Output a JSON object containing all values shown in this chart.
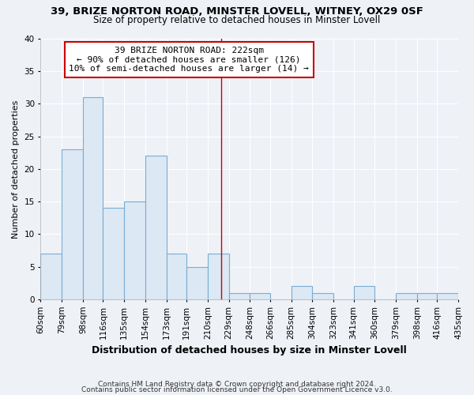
{
  "title": "39, BRIZE NORTON ROAD, MINSTER LOVELL, WITNEY, OX29 0SF",
  "subtitle": "Size of property relative to detached houses in Minster Lovell",
  "xlabel": "Distribution of detached houses by size in Minster Lovell",
  "ylabel": "Number of detached properties",
  "footer_line1": "Contains HM Land Registry data © Crown copyright and database right 2024.",
  "footer_line2": "Contains public sector information licensed under the Open Government Licence v3.0.",
  "bin_edges": [
    60,
    79,
    98,
    116,
    135,
    154,
    173,
    191,
    210,
    229,
    248,
    266,
    285,
    304,
    323,
    341,
    360,
    379,
    398,
    416,
    435
  ],
  "bin_labels": [
    "60sqm",
    "79sqm",
    "98sqm",
    "116sqm",
    "135sqm",
    "154sqm",
    "173sqm",
    "191sqm",
    "210sqm",
    "229sqm",
    "248sqm",
    "266sqm",
    "285sqm",
    "304sqm",
    "323sqm",
    "341sqm",
    "360sqm",
    "379sqm",
    "398sqm",
    "416sqm",
    "435sqm"
  ],
  "counts": [
    7,
    23,
    31,
    14,
    15,
    22,
    7,
    5,
    7,
    1,
    1,
    0,
    2,
    1,
    0,
    2,
    0,
    1,
    1,
    1
  ],
  "bar_color": "#dce8f3",
  "bar_edge_color": "#7aadd4",
  "property_value": 222,
  "vline_color": "#cc0000",
  "annotation_text_line1": "39 BRIZE NORTON ROAD: 222sqm",
  "annotation_text_line2": "← 90% of detached houses are smaller (126)",
  "annotation_text_line3": "10% of semi-detached houses are larger (14) →",
  "annotation_box_facecolor": "#ffffff",
  "annotation_box_edgecolor": "#cc0000",
  "ylim": [
    0,
    40
  ],
  "yticks": [
    0,
    5,
    10,
    15,
    20,
    25,
    30,
    35,
    40
  ],
  "bg_color": "#eef2f7",
  "grid_color": "#ffffff",
  "title_fontsize": 9.5,
  "subtitle_fontsize": 8.5,
  "xlabel_fontsize": 9,
  "ylabel_fontsize": 8,
  "tick_fontsize": 7.5,
  "annotation_fontsize": 8,
  "footer_fontsize": 6.5
}
